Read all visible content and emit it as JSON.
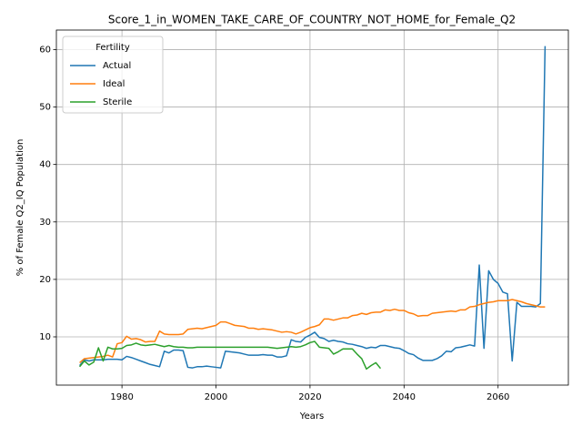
{
  "chart_data": {
    "type": "line",
    "title": "Score_1_in_WOMEN_TAKE_CARE_OF_COUNTRY_NOT_HOME_for_Female_Q2",
    "xlabel": "Years",
    "ylabel": "% of Female Q2_IQ Population",
    "legend_title": "Fertility",
    "legend": "upper left",
    "grid": true,
    "x": [
      1971,
      1972,
      1973,
      1974,
      1975,
      1976,
      1977,
      1978,
      1979,
      1980,
      1981,
      1982,
      1983,
      1984,
      1985,
      1986,
      1987,
      1988,
      1989,
      1990,
      1991,
      1992,
      1993,
      1994,
      1995,
      1996,
      1997,
      1998,
      1999,
      2000,
      2001,
      2002,
      2003,
      2004,
      2005,
      2006,
      2007,
      2008,
      2009,
      2010,
      2011,
      2012,
      2013,
      2014,
      2015,
      2016,
      2017,
      2018,
      2019,
      2020,
      2021,
      2022,
      2023,
      2024,
      2025,
      2026,
      2027,
      2028,
      2029,
      2030,
      2031,
      2032,
      2033,
      2034,
      2035,
      2036,
      2037,
      2038,
      2039,
      2040,
      2041,
      2042,
      2043,
      2044,
      2045,
      2046,
      2047,
      2048,
      2049,
      2050,
      2051,
      2052,
      2053,
      2054,
      2055,
      2056,
      2057,
      2058,
      2059,
      2060,
      2061,
      2062,
      2063,
      2064,
      2065,
      2066,
      2067,
      2068,
      2069,
      2070
    ],
    "series": [
      {
        "name": "Actual",
        "color": "#1f77b4",
        "values": [
          5.0,
          6.0,
          5.8,
          6.0,
          6.0,
          6.0,
          6.1,
          6.1,
          6.1,
          6.0,
          6.6,
          6.4,
          6.1,
          5.8,
          5.5,
          5.2,
          5.0,
          4.8,
          7.5,
          7.2,
          7.7,
          7.7,
          7.6,
          4.7,
          4.6,
          4.8,
          4.8,
          4.9,
          4.8,
          4.7,
          4.6,
          7.5,
          7.4,
          7.3,
          7.2,
          7.0,
          6.8,
          6.8,
          6.8,
          6.9,
          6.8,
          6.8,
          6.5,
          6.5,
          6.7,
          9.5,
          9.2,
          9.1,
          9.9,
          10.3,
          10.8,
          9.9,
          9.7,
          9.2,
          9.4,
          9.2,
          9.1,
          8.8,
          8.7,
          8.5,
          8.3,
          8.0,
          8.2,
          8.1,
          8.5,
          8.5,
          8.3,
          8.1,
          8.0,
          7.6,
          7.1,
          6.9,
          6.3,
          5.9,
          5.9,
          5.9,
          6.2,
          6.7,
          7.5,
          7.4,
          8.1,
          8.2,
          8.4,
          8.6,
          8.4,
          22.5,
          8.0,
          21.5,
          20.0,
          19.3,
          17.8,
          17.5,
          5.8,
          16.0,
          15.3,
          15.3,
          15.3,
          15.2,
          15.8,
          60.6
        ]
      },
      {
        "name": "Ideal",
        "color": "#ff7f0e",
        "values": [
          5.5,
          6.2,
          6.3,
          6.4,
          6.5,
          6.6,
          6.8,
          6.5,
          8.8,
          9.0,
          10.1,
          9.6,
          9.7,
          9.5,
          9.1,
          9.2,
          9.2,
          11.0,
          10.5,
          10.4,
          10.4,
          10.4,
          10.5,
          11.3,
          11.4,
          11.5,
          11.4,
          11.6,
          11.8,
          12.0,
          12.6,
          12.6,
          12.3,
          12.0,
          11.9,
          11.8,
          11.5,
          11.5,
          11.3,
          11.4,
          11.3,
          11.2,
          11.0,
          10.8,
          10.9,
          10.8,
          10.5,
          10.8,
          11.2,
          11.6,
          11.8,
          12.1,
          13.1,
          13.1,
          12.9,
          13.1,
          13.3,
          13.3,
          13.7,
          13.8,
          14.1,
          13.9,
          14.2,
          14.3,
          14.3,
          14.7,
          14.6,
          14.8,
          14.6,
          14.6,
          14.2,
          14.0,
          13.6,
          13.7,
          13.7,
          14.1,
          14.2,
          14.3,
          14.4,
          14.5,
          14.4,
          14.7,
          14.7,
          15.2,
          15.3,
          15.6,
          15.8,
          16.0,
          16.1,
          16.3,
          16.3,
          16.3,
          16.5,
          16.3,
          16.1,
          15.8,
          15.6,
          15.4,
          15.2,
          15.2
        ]
      },
      {
        "name": "Sterile",
        "color": "#2ca02c",
        "values": [
          4.8,
          5.8,
          5.1,
          5.6,
          8.1,
          5.8,
          8.2,
          7.9,
          7.9,
          8.0,
          8.5,
          8.6,
          8.9,
          8.6,
          8.5,
          8.6,
          8.7,
          8.5,
          8.3,
          8.5,
          8.3,
          8.2,
          8.2,
          8.1,
          8.1,
          8.2,
          8.2,
          8.2,
          8.2,
          8.2,
          8.2,
          8.2,
          8.2,
          8.2,
          8.2,
          8.2,
          8.2,
          8.2,
          8.2,
          8.2,
          8.2,
          8.1,
          8.0,
          8.1,
          8.2,
          8.3,
          8.2,
          8.3,
          8.6,
          9.0,
          9.2,
          8.2,
          8.1,
          8.0,
          7.0,
          7.4,
          7.9,
          7.9,
          7.9,
          7.0,
          6.2,
          4.4,
          5.0,
          5.5,
          4.5,
          null,
          null,
          null,
          null,
          null,
          null,
          null,
          null,
          null,
          null,
          null,
          null,
          null,
          null,
          null,
          null,
          null,
          null,
          null,
          null,
          null,
          null,
          null,
          null,
          null,
          null,
          null,
          null,
          null,
          null,
          null,
          null,
          null,
          null,
          null
        ]
      }
    ],
    "xlim": [
      1966.05,
      2074.95
    ],
    "xticks": [
      1980,
      2000,
      2020,
      2040,
      2060
    ],
    "ylim": [
      1.6,
      63.4
    ],
    "yticks": [
      10,
      20,
      30,
      40,
      50,
      60
    ]
  }
}
